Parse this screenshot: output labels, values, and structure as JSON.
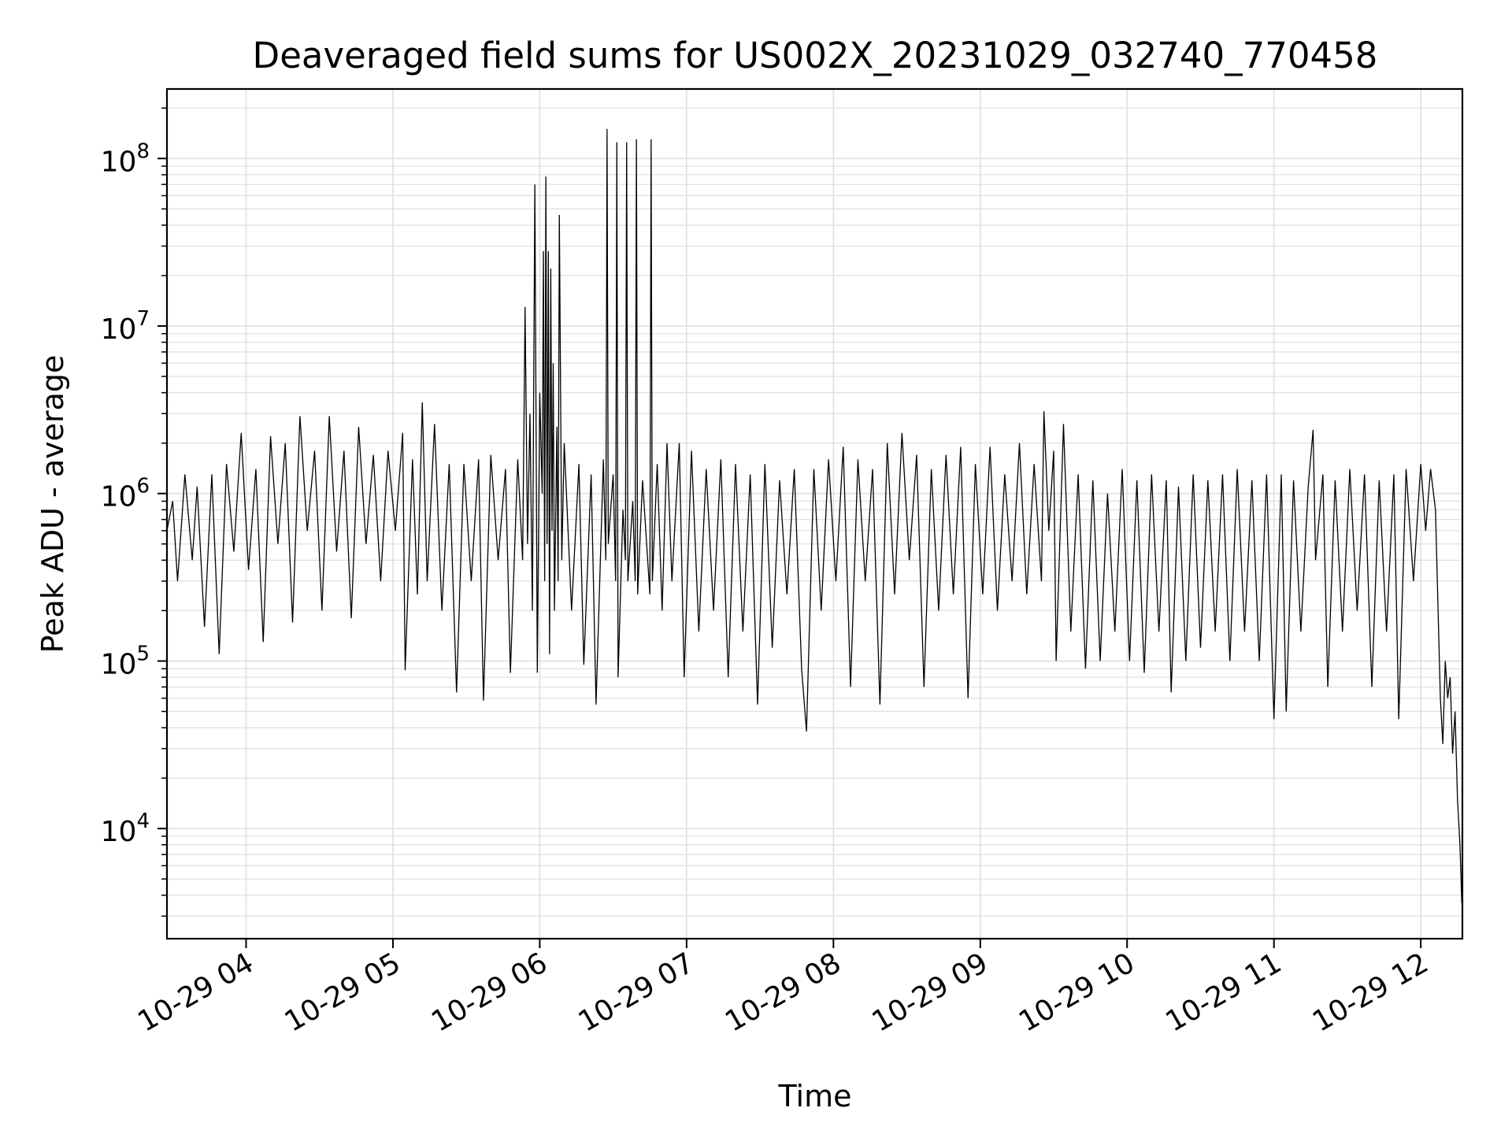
{
  "chart_data": {
    "type": "line",
    "title": "Deaveraged field sums for US002X_20231029_032740_770458",
    "xlabel": "Time",
    "ylabel": "Peak ADU - average",
    "yscale": "log",
    "ylim": [
      2200,
      260000000
    ],
    "xlim": [
      "2023-10-29 03:27:40",
      "2023-10-29 12:17:00"
    ],
    "grid": true,
    "line_color": "#000000",
    "grid_color": "#e0e0e0",
    "x_ticks": [
      {
        "t": "2023-10-29 04:00",
        "label": "10-29 04"
      },
      {
        "t": "2023-10-29 05:00",
        "label": "10-29 05"
      },
      {
        "t": "2023-10-29 06:00",
        "label": "10-29 06"
      },
      {
        "t": "2023-10-29 07:00",
        "label": "10-29 07"
      },
      {
        "t": "2023-10-29 08:00",
        "label": "10-29 08"
      },
      {
        "t": "2023-10-29 09:00",
        "label": "10-29 09"
      },
      {
        "t": "2023-10-29 10:00",
        "label": "10-29 10"
      },
      {
        "t": "2023-10-29 11:00",
        "label": "10-29 11"
      },
      {
        "t": "2023-10-29 12:00",
        "label": "10-29 12"
      }
    ],
    "y_ticks": [
      {
        "value": 10000,
        "base": "10",
        "exp": "4"
      },
      {
        "value": 100000,
        "base": "10",
        "exp": "5"
      },
      {
        "value": 1000000,
        "base": "10",
        "exp": "6"
      },
      {
        "value": 10000000,
        "base": "10",
        "exp": "7"
      },
      {
        "value": 100000000,
        "base": "10",
        "exp": "8"
      }
    ],
    "series": [
      {
        "points": [
          [
            "2023-10-29 03:27:40",
            600000
          ],
          [
            "2023-10-29 03:30",
            900000
          ],
          [
            "2023-10-29 03:32",
            300000
          ],
          [
            "2023-10-29 03:35",
            1300000
          ],
          [
            "2023-10-29 03:38",
            400000
          ],
          [
            "2023-10-29 03:40",
            1100000
          ],
          [
            "2023-10-29 03:43",
            160000
          ],
          [
            "2023-10-29 03:46",
            1300000
          ],
          [
            "2023-10-29 03:49",
            110000
          ],
          [
            "2023-10-29 03:52",
            1500000
          ],
          [
            "2023-10-29 03:55",
            450000
          ],
          [
            "2023-10-29 03:58",
            2300000
          ],
          [
            "2023-10-29 04:01",
            350000
          ],
          [
            "2023-10-29 04:04",
            1400000
          ],
          [
            "2023-10-29 04:07",
            130000
          ],
          [
            "2023-10-29 04:10",
            2200000
          ],
          [
            "2023-10-29 04:13",
            500000
          ],
          [
            "2023-10-29 04:16",
            2000000
          ],
          [
            "2023-10-29 04:19",
            170000
          ],
          [
            "2023-10-29 04:22",
            2900000
          ],
          [
            "2023-10-29 04:25",
            600000
          ],
          [
            "2023-10-29 04:28",
            1800000
          ],
          [
            "2023-10-29 04:31",
            200000
          ],
          [
            "2023-10-29 04:34",
            2900000
          ],
          [
            "2023-10-29 04:37",
            450000
          ],
          [
            "2023-10-29 04:40",
            1800000
          ],
          [
            "2023-10-29 04:43",
            180000
          ],
          [
            "2023-10-29 04:46",
            2500000
          ],
          [
            "2023-10-29 04:49",
            500000
          ],
          [
            "2023-10-29 04:52",
            1700000
          ],
          [
            "2023-10-29 04:55",
            300000
          ],
          [
            "2023-10-29 04:58",
            1800000
          ],
          [
            "2023-10-29 05:01",
            600000
          ],
          [
            "2023-10-29 05:04",
            2300000
          ],
          [
            "2023-10-29 05:05",
            88000
          ],
          [
            "2023-10-29 05:08",
            1600000
          ],
          [
            "2023-10-29 05:10",
            250000
          ],
          [
            "2023-10-29 05:12",
            3500000
          ],
          [
            "2023-10-29 05:14",
            300000
          ],
          [
            "2023-10-29 05:17",
            2600000
          ],
          [
            "2023-10-29 05:20",
            200000
          ],
          [
            "2023-10-29 05:23",
            1500000
          ],
          [
            "2023-10-29 05:26",
            65000
          ],
          [
            "2023-10-29 05:29",
            1500000
          ],
          [
            "2023-10-29 05:32",
            300000
          ],
          [
            "2023-10-29 05:35",
            1600000
          ],
          [
            "2023-10-29 05:37",
            58000
          ],
          [
            "2023-10-29 05:40",
            1700000
          ],
          [
            "2023-10-29 05:43",
            400000
          ],
          [
            "2023-10-29 05:46",
            1400000
          ],
          [
            "2023-10-29 05:48",
            85000
          ],
          [
            "2023-10-29 05:51",
            1600000
          ],
          [
            "2023-10-29 05:53",
            400000
          ],
          [
            "2023-10-29 05:54",
            13000000
          ],
          [
            "2023-10-29 05:55",
            500000
          ],
          [
            "2023-10-29 05:56",
            3000000
          ],
          [
            "2023-10-29 05:57",
            200000
          ],
          [
            "2023-10-29 05:58",
            70000000
          ],
          [
            "2023-10-29 05:59",
            85000
          ],
          [
            "2023-10-29 06:00",
            4000000
          ],
          [
            "2023-10-29 06:01",
            1000000
          ],
          [
            "2023-10-29 06:01:30",
            28000000
          ],
          [
            "2023-10-29 06:02",
            300000
          ],
          [
            "2023-10-29 06:02:30",
            78000000
          ],
          [
            "2023-10-29 06:03",
            500000
          ],
          [
            "2023-10-29 06:03:30",
            28000000
          ],
          [
            "2023-10-29 06:04",
            110000
          ],
          [
            "2023-10-29 06:04:30",
            22000000
          ],
          [
            "2023-10-29 06:05",
            600000
          ],
          [
            "2023-10-29 06:05:30",
            6000000
          ],
          [
            "2023-10-29 06:06",
            200000
          ],
          [
            "2023-10-29 06:07",
            2500000
          ],
          [
            "2023-10-29 06:07:30",
            300000
          ],
          [
            "2023-10-29 06:08",
            46000000
          ],
          [
            "2023-10-29 06:09",
            400000
          ],
          [
            "2023-10-29 06:10",
            2000000
          ],
          [
            "2023-10-29 06:13",
            200000
          ],
          [
            "2023-10-29 06:16",
            1500000
          ],
          [
            "2023-10-29 06:18",
            95000
          ],
          [
            "2023-10-29 06:21",
            1300000
          ],
          [
            "2023-10-29 06:23",
            55000
          ],
          [
            "2023-10-29 06:26",
            1600000
          ],
          [
            "2023-10-29 06:27",
            400000
          ],
          [
            "2023-10-29 06:27:30",
            150000000
          ],
          [
            "2023-10-29 06:28",
            500000
          ],
          [
            "2023-10-29 06:30",
            1300000
          ],
          [
            "2023-10-29 06:31",
            300000
          ],
          [
            "2023-10-29 06:31:30",
            125000000
          ],
          [
            "2023-10-29 06:32",
            80000
          ],
          [
            "2023-10-29 06:34",
            800000
          ],
          [
            "2023-10-29 06:35",
            400000
          ],
          [
            "2023-10-29 06:35:30",
            125000000
          ],
          [
            "2023-10-29 06:36",
            300000
          ],
          [
            "2023-10-29 06:38",
            900000
          ],
          [
            "2023-10-29 06:39",
            300000
          ],
          [
            "2023-10-29 06:39:30",
            130000000
          ],
          [
            "2023-10-29 06:40",
            250000
          ],
          [
            "2023-10-29 06:42",
            1200000
          ],
          [
            "2023-10-29 06:45",
            250000
          ],
          [
            "2023-10-29 06:45:30",
            130000000
          ],
          [
            "2023-10-29 06:46",
            300000
          ],
          [
            "2023-10-29 06:48",
            1500000
          ],
          [
            "2023-10-29 06:50",
            200000
          ],
          [
            "2023-10-29 06:52",
            2000000
          ],
          [
            "2023-10-29 06:54",
            300000
          ],
          [
            "2023-10-29 06:57",
            2000000
          ],
          [
            "2023-10-29 06:59",
            80000
          ],
          [
            "2023-10-29 07:02",
            1800000
          ],
          [
            "2023-10-29 07:05",
            150000
          ],
          [
            "2023-10-29 07:08",
            1400000
          ],
          [
            "2023-10-29 07:11",
            200000
          ],
          [
            "2023-10-29 07:14",
            1600000
          ],
          [
            "2023-10-29 07:17",
            80000
          ],
          [
            "2023-10-29 07:20",
            1500000
          ],
          [
            "2023-10-29 07:23",
            150000
          ],
          [
            "2023-10-29 07:26",
            1300000
          ],
          [
            "2023-10-29 07:29",
            55000
          ],
          [
            "2023-10-29 07:32",
            1500000
          ],
          [
            "2023-10-29 07:35",
            120000
          ],
          [
            "2023-10-29 07:38",
            1200000
          ],
          [
            "2023-10-29 07:41",
            250000
          ],
          [
            "2023-10-29 07:44",
            1400000
          ],
          [
            "2023-10-29 07:47",
            90000
          ],
          [
            "2023-10-29 07:49",
            38000
          ],
          [
            "2023-10-29 07:52",
            1400000
          ],
          [
            "2023-10-29 07:55",
            200000
          ],
          [
            "2023-10-29 07:58",
            1600000
          ],
          [
            "2023-10-29 08:01",
            300000
          ],
          [
            "2023-10-29 08:04",
            1900000
          ],
          [
            "2023-10-29 08:07",
            70000
          ],
          [
            "2023-10-29 08:10",
            1600000
          ],
          [
            "2023-10-29 08:13",
            300000
          ],
          [
            "2023-10-29 08:16",
            1400000
          ],
          [
            "2023-10-29 08:19",
            55000
          ],
          [
            "2023-10-29 08:22",
            2000000
          ],
          [
            "2023-10-29 08:25",
            250000
          ],
          [
            "2023-10-29 08:28",
            2300000
          ],
          [
            "2023-10-29 08:31",
            400000
          ],
          [
            "2023-10-29 08:34",
            1700000
          ],
          [
            "2023-10-29 08:37",
            70000
          ],
          [
            "2023-10-29 08:40",
            1400000
          ],
          [
            "2023-10-29 08:43",
            200000
          ],
          [
            "2023-10-29 08:46",
            1700000
          ],
          [
            "2023-10-29 08:49",
            250000
          ],
          [
            "2023-10-29 08:52",
            1900000
          ],
          [
            "2023-10-29 08:55",
            60000
          ],
          [
            "2023-10-29 08:58",
            1500000
          ],
          [
            "2023-10-29 09:01",
            250000
          ],
          [
            "2023-10-29 09:04",
            1900000
          ],
          [
            "2023-10-29 09:07",
            200000
          ],
          [
            "2023-10-29 09:10",
            1300000
          ],
          [
            "2023-10-29 09:13",
            300000
          ],
          [
            "2023-10-29 09:16",
            2000000
          ],
          [
            "2023-10-29 09:19",
            250000
          ],
          [
            "2023-10-29 09:22",
            1500000
          ],
          [
            "2023-10-29 09:25",
            300000
          ],
          [
            "2023-10-29 09:26",
            3100000
          ],
          [
            "2023-10-29 09:28",
            600000
          ],
          [
            "2023-10-29 09:30",
            1800000
          ],
          [
            "2023-10-29 09:31",
            100000
          ],
          [
            "2023-10-29 09:34",
            2600000
          ],
          [
            "2023-10-29 09:37",
            150000
          ],
          [
            "2023-10-29 09:40",
            1300000
          ],
          [
            "2023-10-29 09:43",
            90000
          ],
          [
            "2023-10-29 09:46",
            1200000
          ],
          [
            "2023-10-29 09:49",
            100000
          ],
          [
            "2023-10-29 09:52",
            1000000
          ],
          [
            "2023-10-29 09:55",
            150000
          ],
          [
            "2023-10-29 09:58",
            1400000
          ],
          [
            "2023-10-29 10:01",
            100000
          ],
          [
            "2023-10-29 10:04",
            1200000
          ],
          [
            "2023-10-29 10:07",
            85000
          ],
          [
            "2023-10-29 10:10",
            1300000
          ],
          [
            "2023-10-29 10:13",
            150000
          ],
          [
            "2023-10-29 10:16",
            1200000
          ],
          [
            "2023-10-29 10:18",
            65000
          ],
          [
            "2023-10-29 10:21",
            1100000
          ],
          [
            "2023-10-29 10:24",
            100000
          ],
          [
            "2023-10-29 10:27",
            1300000
          ],
          [
            "2023-10-29 10:30",
            120000
          ],
          [
            "2023-10-29 10:33",
            1200000
          ],
          [
            "2023-10-29 10:36",
            150000
          ],
          [
            "2023-10-29 10:39",
            1300000
          ],
          [
            "2023-10-29 10:42",
            100000
          ],
          [
            "2023-10-29 10:45",
            1400000
          ],
          [
            "2023-10-29 10:48",
            150000
          ],
          [
            "2023-10-29 10:51",
            1200000
          ],
          [
            "2023-10-29 10:54",
            100000
          ],
          [
            "2023-10-29 10:57",
            1300000
          ],
          [
            "2023-10-29 11:00",
            45000
          ],
          [
            "2023-10-29 11:03",
            1300000
          ],
          [
            "2023-10-29 11:05",
            50000
          ],
          [
            "2023-10-29 11:08",
            1200000
          ],
          [
            "2023-10-29 11:11",
            150000
          ],
          [
            "2023-10-29 11:14",
            1100000
          ],
          [
            "2023-10-29 11:16",
            2400000
          ],
          [
            "2023-10-29 11:17",
            400000
          ],
          [
            "2023-10-29 11:20",
            1300000
          ],
          [
            "2023-10-29 11:22",
            70000
          ],
          [
            "2023-10-29 11:25",
            1200000
          ],
          [
            "2023-10-29 11:28",
            150000
          ],
          [
            "2023-10-29 11:31",
            1400000
          ],
          [
            "2023-10-29 11:34",
            200000
          ],
          [
            "2023-10-29 11:37",
            1300000
          ],
          [
            "2023-10-29 11:40",
            70000
          ],
          [
            "2023-10-29 11:43",
            1200000
          ],
          [
            "2023-10-29 11:46",
            150000
          ],
          [
            "2023-10-29 11:49",
            1300000
          ],
          [
            "2023-10-29 11:51",
            45000
          ],
          [
            "2023-10-29 11:54",
            1400000
          ],
          [
            "2023-10-29 11:57",
            300000
          ],
          [
            "2023-10-29 12:00",
            1500000
          ],
          [
            "2023-10-29 12:02",
            600000
          ],
          [
            "2023-10-29 12:04",
            1400000
          ],
          [
            "2023-10-29 12:06",
            800000
          ],
          [
            "2023-10-29 12:07",
            220000
          ],
          [
            "2023-10-29 12:08",
            60000
          ],
          [
            "2023-10-29 12:09",
            32000
          ],
          [
            "2023-10-29 12:10",
            100000
          ],
          [
            "2023-10-29 12:11",
            60000
          ],
          [
            "2023-10-29 12:12",
            80000
          ],
          [
            "2023-10-29 12:13",
            28000
          ],
          [
            "2023-10-29 12:14",
            50000
          ],
          [
            "2023-10-29 12:15",
            15000
          ],
          [
            "2023-10-29 12:16",
            8000
          ],
          [
            "2023-10-29 12:16:45",
            3600
          ]
        ]
      }
    ]
  }
}
